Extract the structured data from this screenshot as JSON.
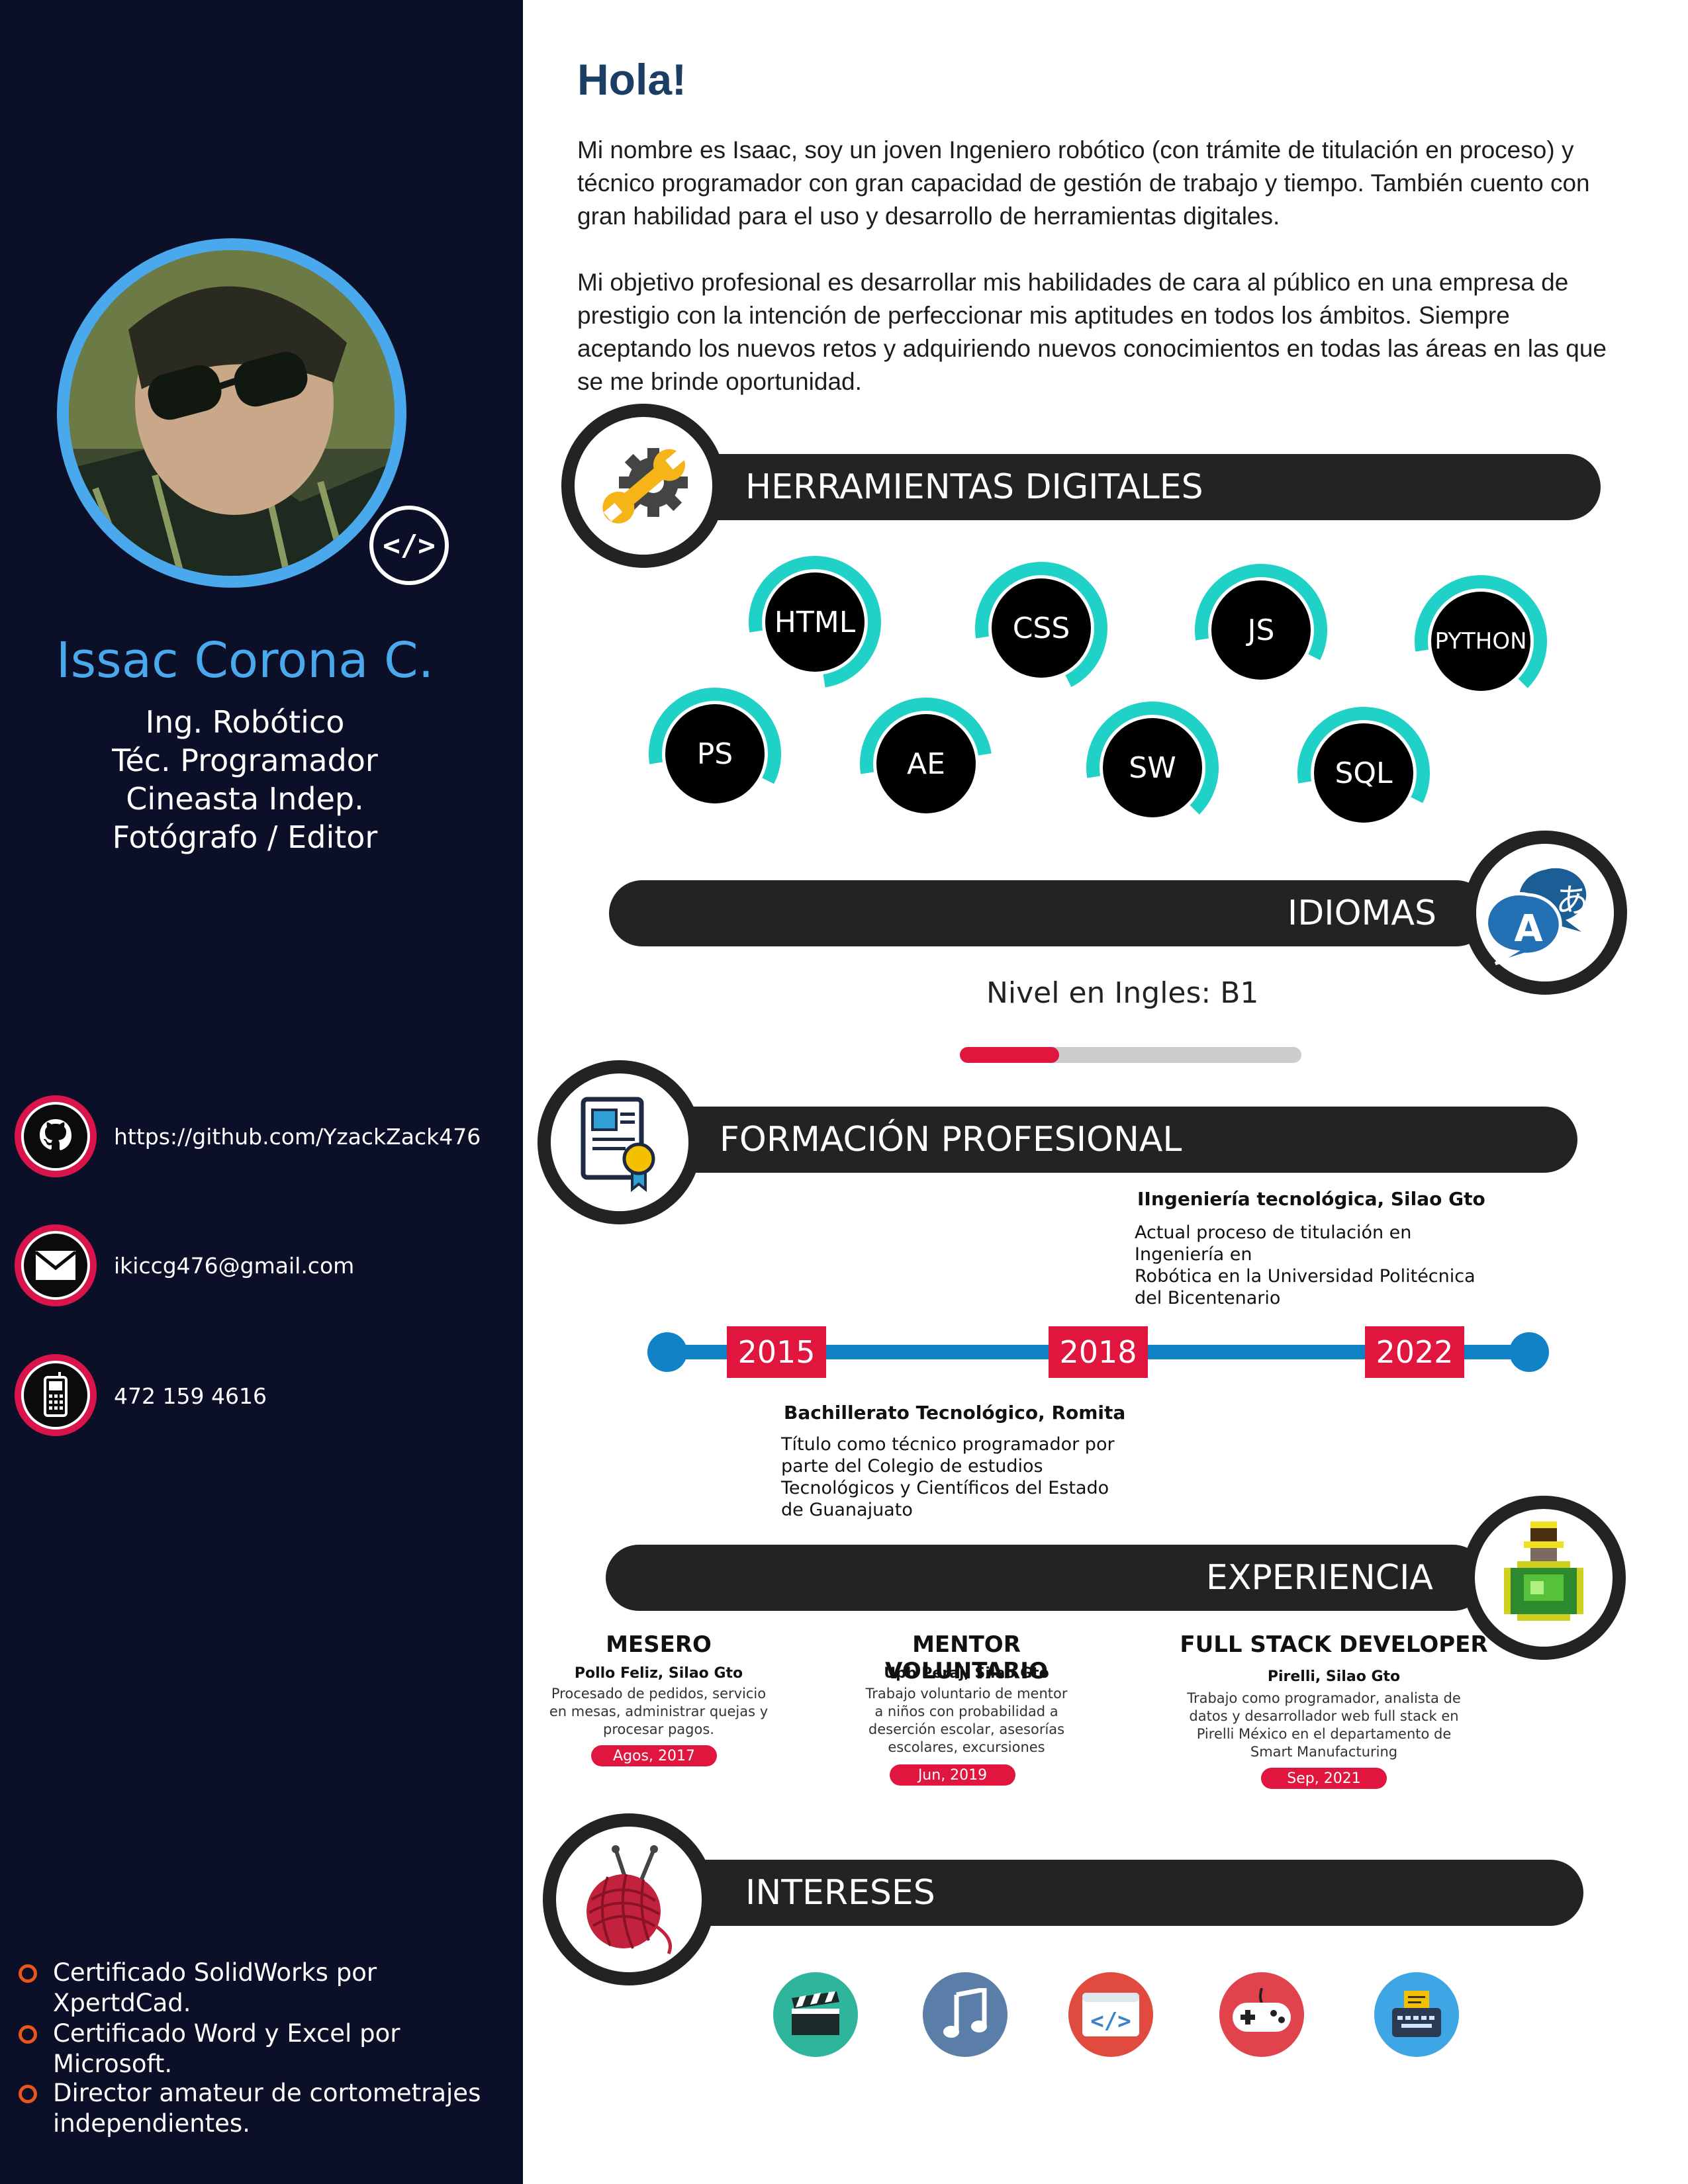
{
  "profile": {
    "name": "Issac Corona C.",
    "roles": [
      "Ing. Robótico",
      "Téc. Programador",
      "Cineasta Indep.",
      "Fotógrafo / Editor"
    ],
    "code_badge": "</>"
  },
  "contacts": [
    {
      "icon": "github-icon",
      "text": "https://github.com/YzackZack476"
    },
    {
      "icon": "mail-icon",
      "text": "ikiccg476@gmail.com"
    },
    {
      "icon": "phone-icon",
      "text": "472 159 4616"
    }
  ],
  "certificates": [
    "Certificado SolidWorks por XpertdCad.",
    "Certificado Word y Excel por Microsoft.",
    "Director amateur de cortometrajes independientes."
  ],
  "intro": {
    "greeting": "Hola!",
    "paragraph1": "Mi nombre es Isaac, soy un joven Ingeniero robótico (con trámite de titulación en proceso) y técnico programador con gran capacidad de gestión de trabajo y tiempo. También cuento con gran habilidad para el uso y desarrollo de herramientas digitales.",
    "paragraph2": "Mi objetivo profesional es desarrollar mis habilidades de cara al público en una empresa de prestigio con la intención de perfeccionar mis aptitudes en todos los ámbitos. Siempre aceptando los nuevos retos y adquiriendo nuevos conocimientos en todas las áreas en las que se me brinde oportunidad."
  },
  "sections": {
    "tools": "HERRAMIENTAS DIGITALES",
    "languages": "IDIOMAS",
    "education": "FORMACIÓN PROFESIONAL",
    "experience": "EXPERIENCIA",
    "interests": "INTERESES"
  },
  "skills": [
    {
      "label": "HTML",
      "level": 0.75
    },
    {
      "label": "CSS",
      "level": 0.7
    },
    {
      "label": "JS",
      "level": 0.6
    },
    {
      "label": "PYTHON",
      "level": 0.65
    },
    {
      "label": "PS",
      "level": 0.6
    },
    {
      "label": "AE",
      "level": 0.5
    },
    {
      "label": "SW",
      "level": 0.65
    },
    {
      "label": "SQL",
      "level": 0.6
    }
  ],
  "language": {
    "label": "Nivel en Ingles: B1",
    "level": 0.29,
    "colors": {
      "fill": "#e0163f",
      "track": "#cccccc"
    }
  },
  "education": {
    "years": [
      "2015",
      "2018",
      "2022"
    ],
    "upper": {
      "title": "IIngeniería tecnológica, Silao Gto",
      "lines": [
        "Actual proceso de titulación en",
        "Ingeniería en",
        "Robótica en la Universidad Politécnica",
        "del Bicentenario"
      ]
    },
    "lower": {
      "title": "Bachillerato Tecnológico, Romita",
      "lines": [
        "Título como técnico programador por",
        "parte del Colegio de estudios",
        "Tecnológicos y Científicos del Estado",
        "de Guanajuato"
      ]
    }
  },
  "experience": [
    {
      "title": "MESERO",
      "place": "Pollo Feliz, Silao Gto",
      "lines": [
        "Procesado de pedidos, servicio",
        "en mesas, administrar quejas y",
        "procesar pagos."
      ],
      "date": "Agos, 2017"
    },
    {
      "title": "MENTOR VOLUNTARIO",
      "place": "Upb Peraj, Silao Gto",
      "lines": [
        "Trabajo voluntario de mentor",
        "a niños con probabilidad a",
        "deserción escolar, asesorías",
        "escolares, excursiones"
      ],
      "date": "Jun, 2019"
    },
    {
      "title": "FULL STACK DEVELOPER",
      "place": "Pirelli, Silao Gto",
      "lines": [
        "Trabajo como programador, analista de",
        "datos y desarrollador web full stack en",
        "Pirelli México en el departamento de",
        "Smart Manufacturing"
      ],
      "date": "Sep, 2021"
    }
  ],
  "interests": [
    {
      "icon": "clapperboard-icon",
      "color": "#2fb59b"
    },
    {
      "icon": "music-note-icon",
      "color": "#5a7ea7"
    },
    {
      "icon": "code-window-icon",
      "color": "#e04a3f"
    },
    {
      "icon": "gamepad-icon",
      "color": "#e0434b"
    },
    {
      "icon": "typewriter-icon",
      "color": "#3fa6e6"
    }
  ],
  "colors": {
    "sidebar": "#0b1028",
    "accent_blue": "#4aa8ec",
    "accent_red": "#e0163f",
    "bar": "#232323",
    "skill_ring": "#1fd1c7",
    "timeline": "#1282c7"
  }
}
